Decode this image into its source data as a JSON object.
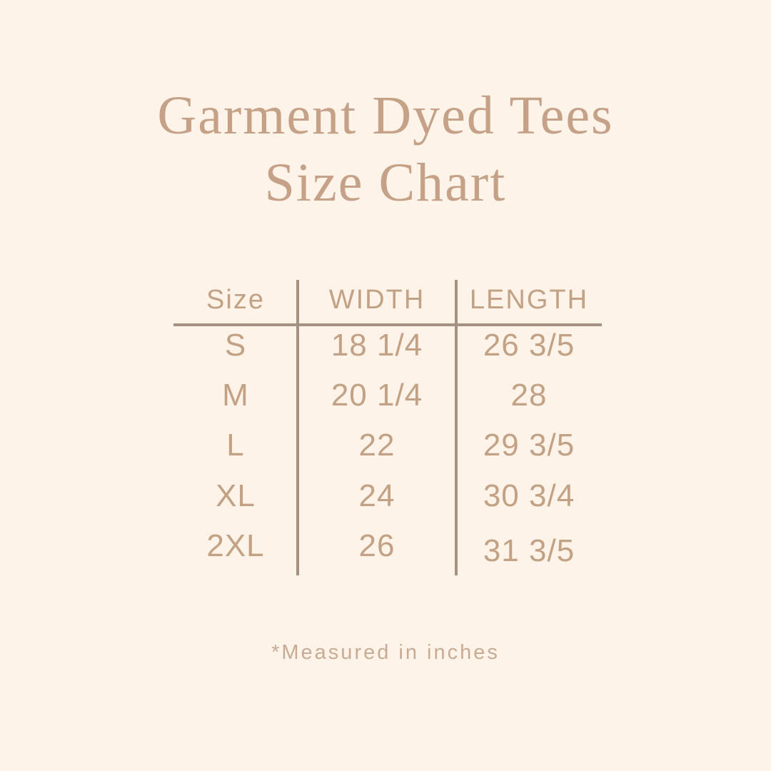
{
  "page": {
    "background_color": "#fdf3e9",
    "accent_color": "#c5a287",
    "line_color": "#a69283"
  },
  "title": {
    "line1": "Garment Dyed Tees",
    "line2": "Size Chart"
  },
  "table": {
    "headers": [
      "Size",
      "WIDTH",
      "LENGTH"
    ],
    "rows": [
      {
        "size": "S",
        "width": "18 1/4",
        "length": "26 3/5"
      },
      {
        "size": "M",
        "width": "20 1/4",
        "length": "28"
      },
      {
        "size": "L",
        "width": "22",
        "length": "29 3/5"
      },
      {
        "size": "XL",
        "width": "24",
        "length": "30 3/4"
      },
      {
        "size": "2XL",
        "width": "26",
        "length": "31 3/5"
      }
    ]
  },
  "footnote": {
    "text": "*Measured in inches"
  },
  "chart_data": {
    "type": "table",
    "title": "Garment Dyed Tees Size Chart",
    "columns": [
      "Size",
      "WIDTH",
      "LENGTH"
    ],
    "rows": [
      [
        "S",
        "18 1/4",
        "26 3/5"
      ],
      [
        "M",
        "20 1/4",
        "28"
      ],
      [
        "L",
        "22",
        "29 3/5"
      ],
      [
        "XL",
        "24",
        "30 3/4"
      ],
      [
        "2XL",
        "26",
        "31 3/5"
      ]
    ],
    "note": "*Measured in inches",
    "units": "inches"
  }
}
